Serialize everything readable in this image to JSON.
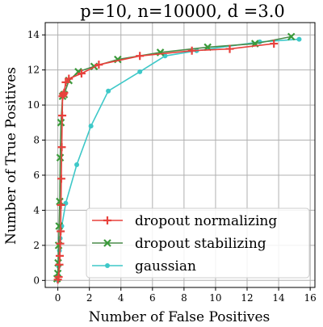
{
  "chart_data": {
    "type": "line",
    "title": "p=10, n=10000, d =3.0",
    "xlabel": "Number of False Positives",
    "ylabel": "Number of True Positives",
    "xlim": [
      -0.8,
      16.3
    ],
    "ylim": [
      -0.4,
      14.7
    ],
    "xticks": [
      0,
      2,
      4,
      6,
      8,
      10,
      12,
      14,
      16
    ],
    "yticks": [
      0,
      2,
      4,
      6,
      8,
      10,
      12,
      14
    ],
    "grid": true,
    "legend_position": "bottom-right",
    "series": [
      {
        "name": "dropout normalizing",
        "color": "#e8413c",
        "marker": "plus",
        "x": [
          0.0,
          0.05,
          0.1,
          0.12,
          0.15,
          0.18,
          0.2,
          0.22,
          0.25,
          0.28,
          0.3,
          0.35,
          0.4,
          0.5,
          0.7,
          1.5,
          2.6,
          5.2,
          8.5,
          10.9,
          13.7
        ],
        "y": [
          0.05,
          0.2,
          0.9,
          1.4,
          2.1,
          2.8,
          4.3,
          5.8,
          7.6,
          9.4,
          10.5,
          10.6,
          10.7,
          11.3,
          11.5,
          11.8,
          12.3,
          12.8,
          13.1,
          13.2,
          13.5
        ]
      },
      {
        "name": "dropout stabilizing",
        "color": "#3a9a3a",
        "marker": "x",
        "x": [
          -0.05,
          0.0,
          0.02,
          0.05,
          0.08,
          0.12,
          0.15,
          0.2,
          0.3,
          0.4,
          0.7,
          1.3,
          2.3,
          3.8,
          6.5,
          9.5,
          12.5,
          14.8
        ],
        "y": [
          0.1,
          0.4,
          1.0,
          2.0,
          3.1,
          4.5,
          7.0,
          9.0,
          10.5,
          10.6,
          11.4,
          11.9,
          12.2,
          12.6,
          13.0,
          13.3,
          13.5,
          13.9
        ],
        "line_color": "#4a8c4a"
      },
      {
        "name": "gaussian",
        "color": "#3ec8c8",
        "marker": "dot",
        "x": [
          0.0,
          0.02,
          0.05,
          0.1,
          0.15,
          0.25,
          0.5,
          1.2,
          2.1,
          3.2,
          5.2,
          6.8,
          8.8,
          12.8,
          15.3
        ],
        "y": [
          0.0,
          0.3,
          0.8,
          1.7,
          2.4,
          3.1,
          4.4,
          6.6,
          8.8,
          10.8,
          11.9,
          12.8,
          13.1,
          13.6,
          13.75
        ]
      }
    ]
  }
}
